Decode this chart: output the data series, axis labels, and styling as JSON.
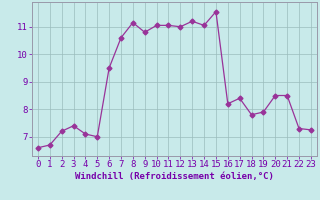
{
  "x": [
    0,
    1,
    2,
    3,
    4,
    5,
    6,
    7,
    8,
    9,
    10,
    11,
    12,
    13,
    14,
    15,
    16,
    17,
    18,
    19,
    20,
    21,
    22,
    23
  ],
  "y": [
    6.6,
    6.7,
    7.2,
    7.4,
    7.1,
    7.0,
    9.5,
    10.6,
    11.15,
    10.8,
    11.05,
    11.05,
    11.0,
    11.2,
    11.05,
    11.55,
    8.2,
    8.4,
    7.8,
    7.9,
    8.5,
    8.5,
    7.3,
    7.25
  ],
  "line_color": "#993399",
  "marker": "D",
  "marker_size": 2.5,
  "bg_color": "#c8eaea",
  "grid_color": "#9bbdbd",
  "xlabel": "Windchill (Refroidissement éolien,°C)",
  "xlim": [
    -0.5,
    23.5
  ],
  "ylim": [
    6.3,
    11.9
  ],
  "yticks": [
    7,
    8,
    9,
    10,
    11
  ],
  "xticks": [
    0,
    1,
    2,
    3,
    4,
    5,
    6,
    7,
    8,
    9,
    10,
    11,
    12,
    13,
    14,
    15,
    16,
    17,
    18,
    19,
    20,
    21,
    22,
    23
  ],
  "xlabel_fontsize": 6.5,
  "tick_fontsize": 6.5,
  "label_color": "#7700aa",
  "spine_color": "#9999aa",
  "linewidth": 0.9
}
